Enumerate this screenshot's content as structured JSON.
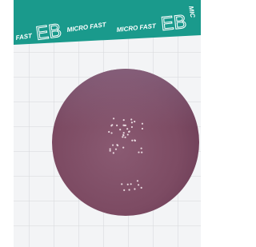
{
  "header": {
    "texts": [
      "FAST",
      "EB",
      "MICRO FAST",
      "MICRO FAST",
      "EB",
      "MIC"
    ]
  }
}
